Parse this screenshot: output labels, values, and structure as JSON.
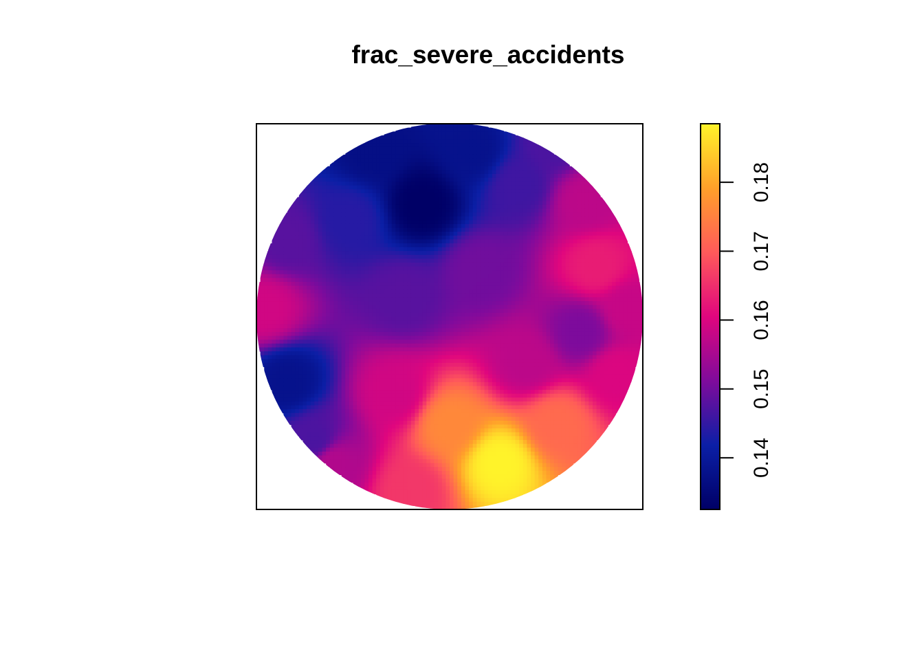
{
  "chart_data": {
    "type": "heatmap",
    "title": "frac_severe_accidents",
    "shape": "circle",
    "axes_shown": false,
    "value_range": [
      0.1325,
      0.1885
    ],
    "colorbar": {
      "ticks": [
        0.14,
        0.15,
        0.16,
        0.17,
        0.18
      ],
      "tick_labels": [
        "0.14",
        "0.15",
        "0.16",
        "0.17",
        "0.18"
      ],
      "colors": [
        "#000066",
        "#0b1fa6",
        "#7f0b9c",
        "#e0067e",
        "#ff5a5a",
        "#ffa02a",
        "#fff32a"
      ]
    },
    "field_anchors": [
      {
        "x": 0.43,
        "y": 0.79,
        "v": 0.1325
      },
      {
        "x": 0.3,
        "y": 0.93,
        "v": 0.137
      },
      {
        "x": 0.56,
        "y": 0.93,
        "v": 0.138
      },
      {
        "x": 0.24,
        "y": 0.75,
        "v": 0.144
      },
      {
        "x": 0.68,
        "y": 0.84,
        "v": 0.146
      },
      {
        "x": 0.08,
        "y": 0.7,
        "v": 0.148
      },
      {
        "x": 0.77,
        "y": 0.95,
        "v": 0.147
      },
      {
        "x": 0.02,
        "y": 0.52,
        "v": 0.159
      },
      {
        "x": 0.08,
        "y": 0.33,
        "v": 0.138
      },
      {
        "x": 0.15,
        "y": 0.18,
        "v": 0.147
      },
      {
        "x": 0.38,
        "y": 0.55,
        "v": 0.148
      },
      {
        "x": 0.58,
        "y": 0.62,
        "v": 0.15
      },
      {
        "x": 0.85,
        "y": 0.8,
        "v": 0.157
      },
      {
        "x": 0.88,
        "y": 0.63,
        "v": 0.163
      },
      {
        "x": 0.96,
        "y": 0.52,
        "v": 0.158
      },
      {
        "x": 0.84,
        "y": 0.46,
        "v": 0.151
      },
      {
        "x": 0.93,
        "y": 0.35,
        "v": 0.16
      },
      {
        "x": 0.7,
        "y": 0.38,
        "v": 0.157
      },
      {
        "x": 0.36,
        "y": 0.3,
        "v": 0.159
      },
      {
        "x": 0.2,
        "y": 0.12,
        "v": 0.156
      },
      {
        "x": 0.5,
        "y": 0.22,
        "v": 0.176
      },
      {
        "x": 0.63,
        "y": 0.12,
        "v": 0.1885
      },
      {
        "x": 0.78,
        "y": 0.22,
        "v": 0.172
      },
      {
        "x": 0.4,
        "y": 0.05,
        "v": 0.166
      }
    ]
  }
}
